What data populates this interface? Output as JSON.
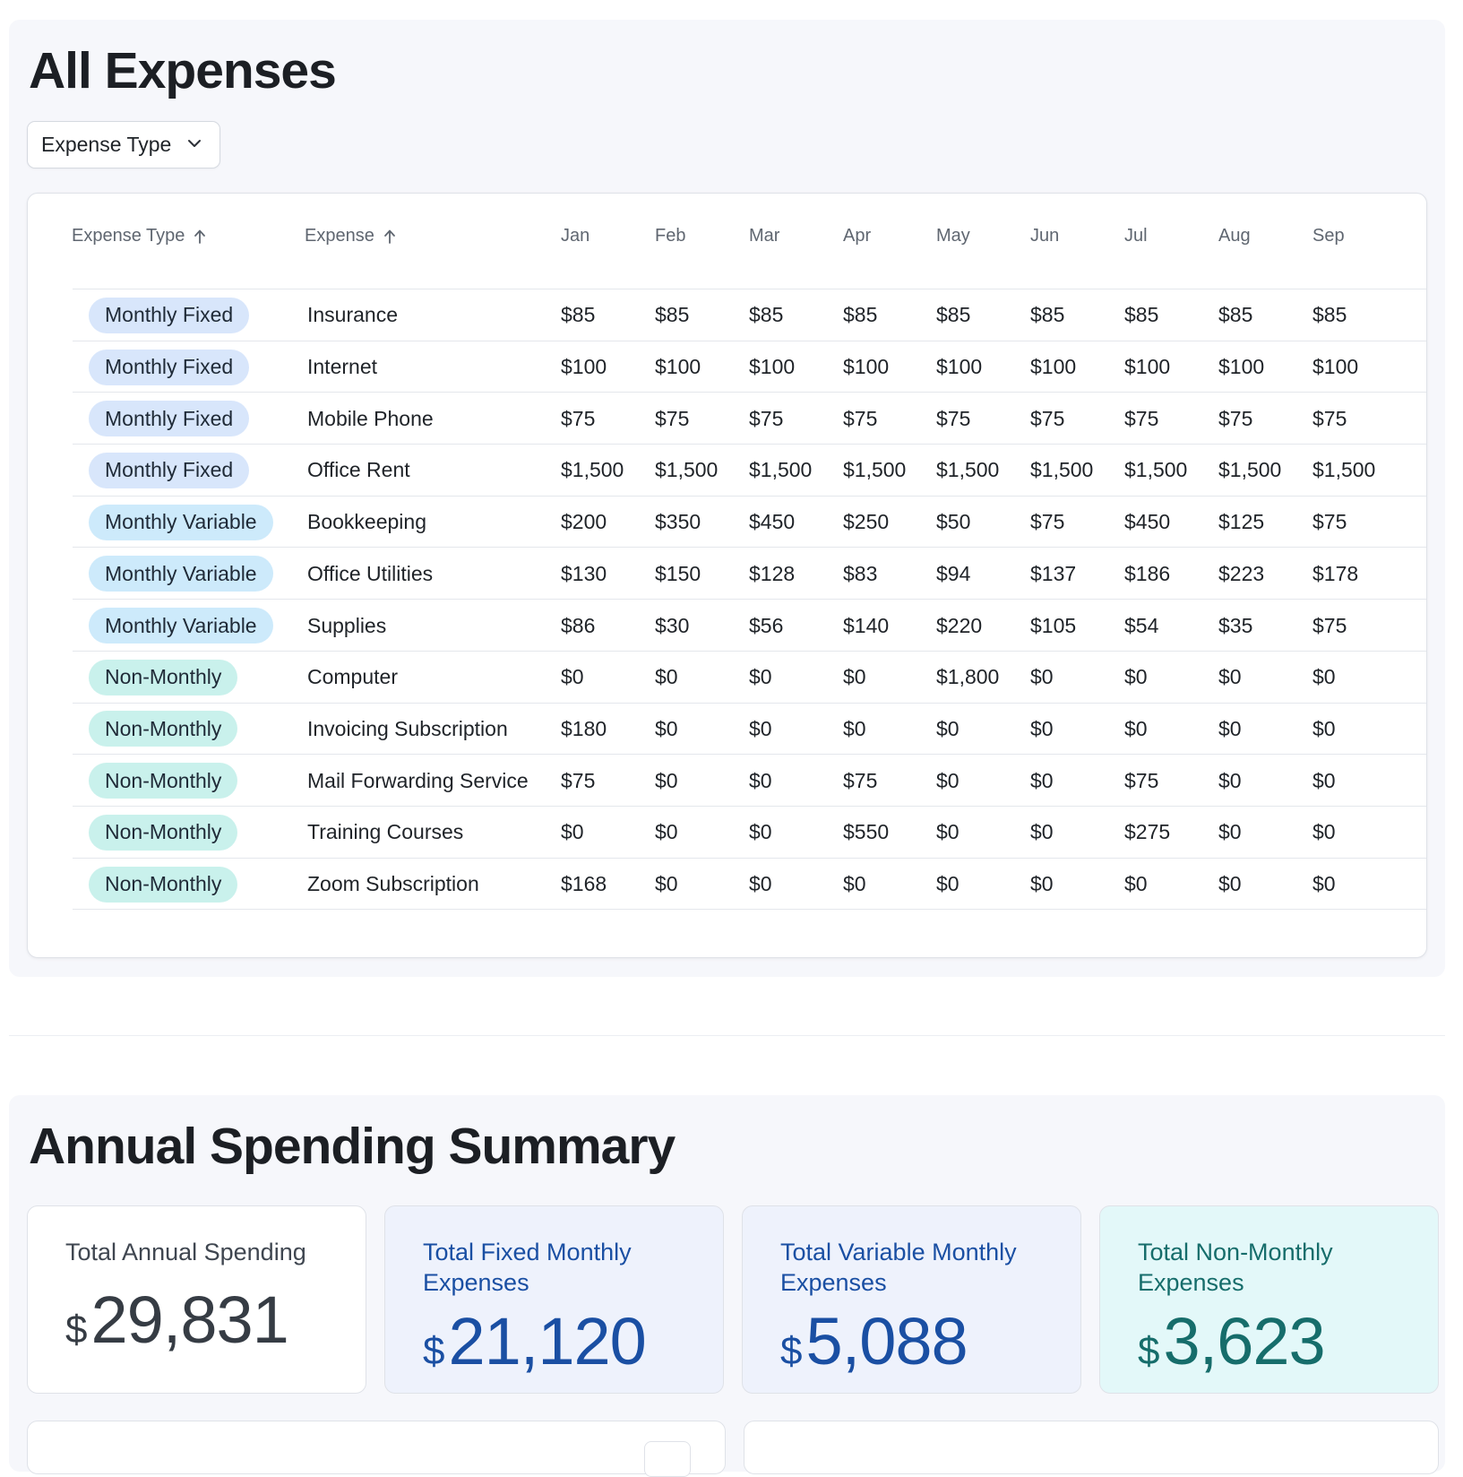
{
  "expenses": {
    "title": "All Expenses",
    "filter": {
      "label": "Expense Type",
      "icon": "chevron-down-icon"
    },
    "columns": {
      "type": "Expense Type",
      "expense": "Expense",
      "months": [
        "Jan",
        "Feb",
        "Mar",
        "Apr",
        "May",
        "Jun",
        "Jul",
        "Aug",
        "Sep"
      ]
    },
    "sort_icon": "arrow-up-icon",
    "rows": [
      {
        "type": "Monthly Fixed",
        "kind": "fixed",
        "expense": "Insurance",
        "values": [
          "$85",
          "$85",
          "$85",
          "$85",
          "$85",
          "$85",
          "$85",
          "$85",
          "$85"
        ]
      },
      {
        "type": "Monthly Fixed",
        "kind": "fixed",
        "expense": "Internet",
        "values": [
          "$100",
          "$100",
          "$100",
          "$100",
          "$100",
          "$100",
          "$100",
          "$100",
          "$100"
        ]
      },
      {
        "type": "Monthly Fixed",
        "kind": "fixed",
        "expense": "Mobile Phone",
        "values": [
          "$75",
          "$75",
          "$75",
          "$75",
          "$75",
          "$75",
          "$75",
          "$75",
          "$75"
        ]
      },
      {
        "type": "Monthly Fixed",
        "kind": "fixed",
        "expense": "Office Rent",
        "values": [
          "$1,500",
          "$1,500",
          "$1,500",
          "$1,500",
          "$1,500",
          "$1,500",
          "$1,500",
          "$1,500",
          "$1,500"
        ]
      },
      {
        "type": "Monthly Variable",
        "kind": "variable",
        "expense": "Bookkeeping",
        "values": [
          "$200",
          "$350",
          "$450",
          "$250",
          "$50",
          "$75",
          "$450",
          "$125",
          "$75"
        ]
      },
      {
        "type": "Monthly Variable",
        "kind": "variable",
        "expense": "Office Utilities",
        "values": [
          "$130",
          "$150",
          "$128",
          "$83",
          "$94",
          "$137",
          "$186",
          "$223",
          "$178"
        ]
      },
      {
        "type": "Monthly Variable",
        "kind": "variable",
        "expense": "Supplies",
        "values": [
          "$86",
          "$30",
          "$56",
          "$140",
          "$220",
          "$105",
          "$54",
          "$35",
          "$75"
        ]
      },
      {
        "type": "Non-Monthly",
        "kind": "nonmonthly",
        "expense": "Computer",
        "values": [
          "$0",
          "$0",
          "$0",
          "$0",
          "$1,800",
          "$0",
          "$0",
          "$0",
          "$0"
        ]
      },
      {
        "type": "Non-Monthly",
        "kind": "nonmonthly",
        "expense": "Invoicing Subscription",
        "values": [
          "$180",
          "$0",
          "$0",
          "$0",
          "$0",
          "$0",
          "$0",
          "$0",
          "$0"
        ]
      },
      {
        "type": "Non-Monthly",
        "kind": "nonmonthly",
        "expense": "Mail Forwarding Service",
        "values": [
          "$75",
          "$0",
          "$0",
          "$75",
          "$0",
          "$0",
          "$75",
          "$0",
          "$0"
        ]
      },
      {
        "type": "Non-Monthly",
        "kind": "nonmonthly",
        "expense": "Training Courses",
        "values": [
          "$0",
          "$0",
          "$0",
          "$550",
          "$0",
          "$0",
          "$275",
          "$0",
          "$0"
        ]
      },
      {
        "type": "Non-Monthly",
        "kind": "nonmonthly",
        "expense": "Zoom Subscription",
        "values": [
          "$168",
          "$0",
          "$0",
          "$0",
          "$0",
          "$0",
          "$0",
          "$0",
          "$0"
        ]
      }
    ]
  },
  "summary": {
    "title": "Annual Spending Summary",
    "currency": "$",
    "total": {
      "label": "Total Annual Spending",
      "value": "29,831"
    },
    "fixed": {
      "label": "Total Fixed Monthly Expenses",
      "value": "21,120"
    },
    "variable": {
      "label": "Total Variable Monthly Expenses",
      "value": "5,088"
    },
    "nonmonthly": {
      "label": "Total Non-Monthly Expenses",
      "value": "3,623"
    }
  },
  "colors": {
    "fixed_pill": "#d8e6fb",
    "variable_pill": "#cdeafb",
    "nonmonthly_pill": "#c9f1ec",
    "blue_text": "#1a4fa3",
    "teal_text": "#166d6b"
  }
}
